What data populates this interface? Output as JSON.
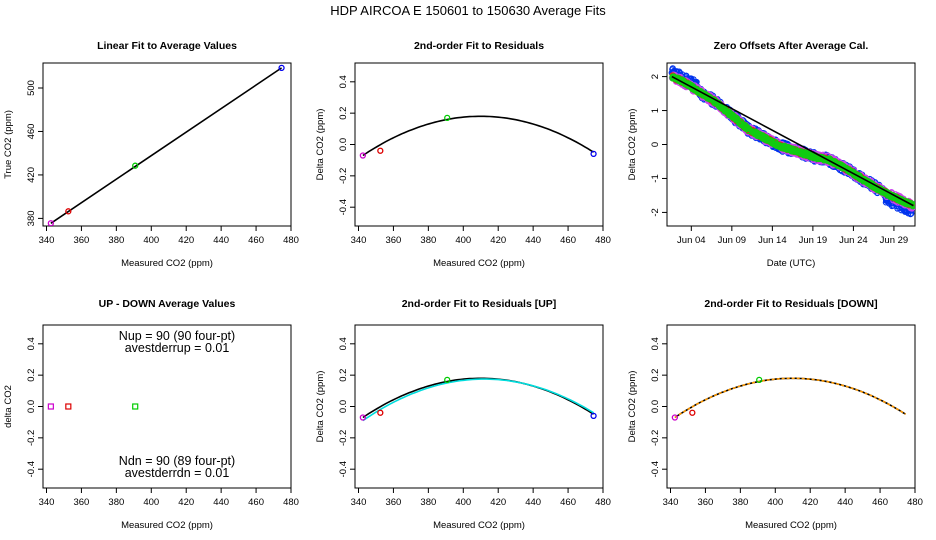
{
  "figure": {
    "title": "HDP   AIRCOA E   150601 to 150630   Average Fits"
  },
  "chart_data": [
    {
      "id": "p1",
      "type": "scatter",
      "title": "Linear Fit to Average Values",
      "xlabel": "Measured CO2 (ppm)",
      "ylabel": "True CO2 (ppm)",
      "xlim": [
        338,
        480
      ],
      "ylim": [
        373,
        523
      ],
      "xticks": [
        340,
        360,
        380,
        400,
        420,
        440,
        460,
        480
      ],
      "yticks": [
        380,
        420,
        460,
        500
      ],
      "series": [
        {
          "color": "#cc00cc",
          "points": [
            [
              342.5,
              375.5
            ]
          ]
        },
        {
          "color": "#dd0000",
          "points": [
            [
              352.5,
              386.5
            ]
          ]
        },
        {
          "color": "#00cc00",
          "points": [
            [
              390.8,
              428.5
            ]
          ]
        },
        {
          "color": "#0000ee",
          "points": [
            [
              474.6,
              518.5
            ]
          ]
        }
      ],
      "lines": [
        {
          "color": "#000000",
          "x": [
            342.5,
            474.6
          ],
          "y": [
            375.5,
            518.5
          ]
        }
      ]
    },
    {
      "id": "p2",
      "type": "scatter",
      "title": "2nd-order Fit to Residuals",
      "xlabel": "Measured CO2 (ppm)",
      "ylabel": "Delta CO2 (ppm)",
      "xlim": [
        338,
        480
      ],
      "ylim": [
        -0.52,
        0.52
      ],
      "xticks": [
        340,
        360,
        380,
        400,
        420,
        440,
        460,
        480
      ],
      "yticks": [
        -0.4,
        -0.2,
        0.0,
        0.2,
        0.4
      ],
      "series": [
        {
          "color": "#cc00cc",
          "points": [
            [
              342.5,
              -0.07
            ]
          ]
        },
        {
          "color": "#dd0000",
          "points": [
            [
              352.5,
              -0.04
            ]
          ]
        },
        {
          "color": "#00cc00",
          "points": [
            [
              390.8,
              0.17
            ]
          ]
        },
        {
          "color": "#0000ee",
          "points": [
            [
              474.6,
              -0.06
            ]
          ]
        }
      ],
      "curves": [
        {
          "color": "#000000",
          "x_range": [
            342.5,
            474.6
          ],
          "vertex": [
            410,
            0.18
          ],
          "through": [
            342.5,
            -0.07
          ]
        }
      ]
    },
    {
      "id": "p3",
      "type": "scatter",
      "title": "Zero Offsets After Average Cal.",
      "xlabel": "Date (UTC)",
      "ylabel": "Delta CO2 (ppm)",
      "xlim": [
        0,
        30.6
      ],
      "ylim": [
        -2.4,
        2.4
      ],
      "xticks": [
        3,
        8,
        13,
        18,
        23,
        28
      ],
      "xticklabels": [
        "Jun 04",
        "Jun 09",
        "Jun 14",
        "Jun 19",
        "Jun 24",
        "Jun 29"
      ],
      "yticks": [
        -2,
        -1,
        0,
        1,
        2
      ],
      "trend": {
        "x": [
          0.6,
          2,
          4,
          6,
          8,
          10,
          12,
          14,
          16,
          18,
          20,
          22,
          24,
          26,
          28,
          30.4
        ],
        "y": [
          2.0,
          1.85,
          1.55,
          1.25,
          0.85,
          0.45,
          0.2,
          -0.05,
          -0.2,
          -0.35,
          -0.45,
          -0.7,
          -1.0,
          -1.3,
          -1.55,
          -1.8
        ]
      },
      "series": [
        {
          "color": "#0033ee",
          "spread": 0.14
        },
        {
          "color": "#cc44ee",
          "spread": 0.11
        },
        {
          "color": "#dd2222",
          "spread": 0.05
        },
        {
          "color": "#11cc11",
          "spread": 0.05
        }
      ],
      "lines": [
        {
          "color": "#000000",
          "x": [
            0.6,
            30.4
          ],
          "y": [
            2.0,
            -1.8
          ]
        }
      ]
    },
    {
      "id": "p4",
      "type": "scatter",
      "title": "UP - DOWN Average Values",
      "xlabel": "Measured CO2 (ppm)",
      "ylabel": "delta CO2",
      "xlim": [
        338,
        480
      ],
      "ylim": [
        -0.52,
        0.52
      ],
      "xticks": [
        340,
        360,
        380,
        400,
        420,
        440,
        460,
        480
      ],
      "yticks": [
        -0.4,
        -0.2,
        0.0,
        0.2,
        0.4
      ],
      "series": [
        {
          "color": "#cc00cc",
          "points": [
            [
              342.5,
              0.0
            ]
          ]
        },
        {
          "color": "#dd0000",
          "points": [
            [
              352.5,
              0.0
            ]
          ]
        },
        {
          "color": "#00cc00",
          "points": [
            [
              390.8,
              0.0
            ]
          ]
        }
      ],
      "annotations": {
        "nup": "Nup = 90 (90 four-pt)",
        "avestderrup": "avestderrup =  0.01",
        "ndn": "Ndn = 90 (89 four-pt)",
        "avestderrdn": "avestderrdn =  0.01"
      }
    },
    {
      "id": "p5",
      "type": "scatter",
      "title": "2nd-order Fit to Residuals [UP]",
      "xlabel": "Measured CO2 (ppm)",
      "ylabel": "Delta CO2 (ppm)",
      "xlim": [
        338,
        480
      ],
      "ylim": [
        -0.52,
        0.52
      ],
      "xticks": [
        340,
        360,
        380,
        400,
        420,
        440,
        460,
        480
      ],
      "yticks": [
        -0.4,
        -0.2,
        0.0,
        0.2,
        0.4
      ],
      "series": [
        {
          "color": "#cc00cc",
          "points": [
            [
              342.5,
              -0.07
            ]
          ]
        },
        {
          "color": "#dd0000",
          "points": [
            [
              352.5,
              -0.04
            ]
          ]
        },
        {
          "color": "#00cc00",
          "points": [
            [
              390.8,
              0.17
            ]
          ]
        },
        {
          "color": "#0000ee",
          "points": [
            [
              474.6,
              -0.06
            ]
          ]
        }
      ],
      "curves": [
        {
          "color": "#000000",
          "x_range": [
            342.5,
            474.6
          ],
          "vertex": [
            410,
            0.18
          ],
          "through": [
            342.5,
            -0.07
          ]
        },
        {
          "color": "#00dddd",
          "x_range": [
            342.5,
            474.6
          ],
          "vertex": [
            412,
            0.175
          ],
          "through": [
            342.5,
            -0.09
          ]
        }
      ]
    },
    {
      "id": "p6",
      "type": "scatter",
      "title": "2nd-order Fit to Residuals [DOWN]",
      "xlabel": "Measured CO2 (ppm)",
      "ylabel": "Delta CO2 (ppm)",
      "xlim": [
        338,
        480
      ],
      "ylim": [
        -0.52,
        0.52
      ],
      "xticks": [
        340,
        360,
        380,
        400,
        420,
        440,
        460,
        480
      ],
      "yticks": [
        -0.4,
        -0.2,
        0.0,
        0.2,
        0.4
      ],
      "series": [
        {
          "color": "#cc00cc",
          "points": [
            [
              342.5,
              -0.07
            ]
          ]
        },
        {
          "color": "#dd0000",
          "points": [
            [
              352.5,
              -0.04
            ]
          ]
        },
        {
          "color": "#00cc00",
          "points": [
            [
              390.8,
              0.17
            ]
          ]
        }
      ],
      "curves": [
        {
          "color": "#000000",
          "x_range": [
            342.5,
            474.6
          ],
          "vertex": [
            410,
            0.18
          ],
          "through": [
            342.5,
            -0.07
          ]
        },
        {
          "color": "#ff9900",
          "x_range": [
            342.5,
            474.6
          ],
          "vertex": [
            410,
            0.18
          ],
          "through": [
            342.5,
            -0.07
          ],
          "dashed": true
        }
      ]
    }
  ]
}
